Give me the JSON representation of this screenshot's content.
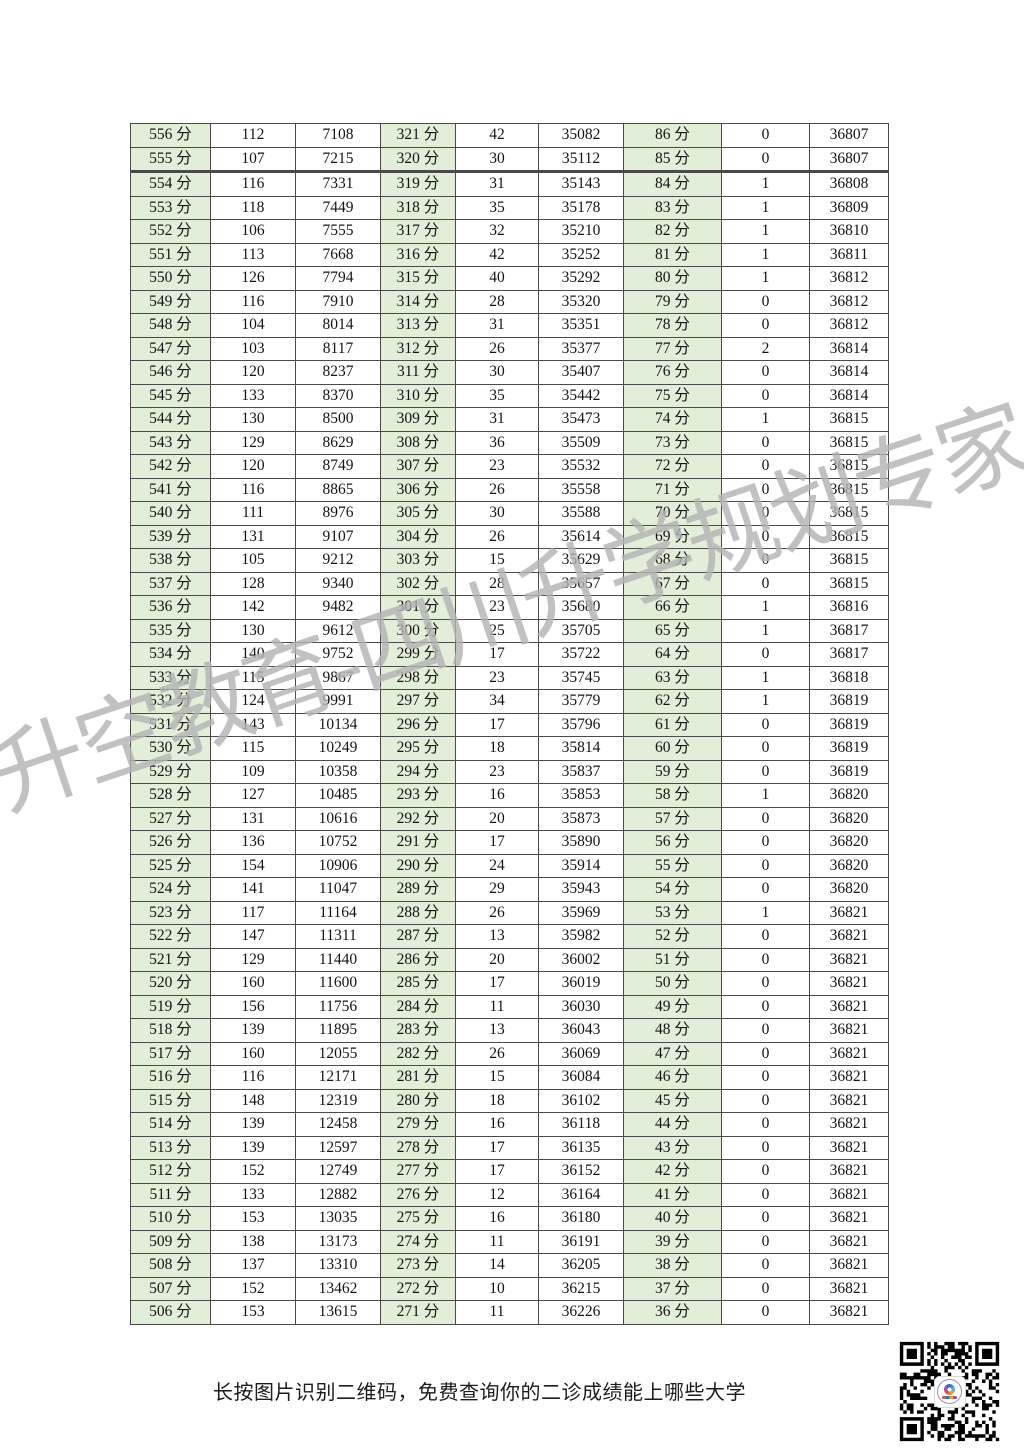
{
  "document": {
    "watermark": "升空教育-四川升学规划专家",
    "footer_caption": "长按图片识别二维码，免费查询你的二诊成绩能上哪些大学",
    "qr_code": {
      "icon": "qr-code",
      "center_logo_icon": "shengkong-education-logo"
    }
  },
  "colors": {
    "page_bg": "#ffffff",
    "score_cell_bg": "#e2eed8",
    "table_border": "#4a4a4a",
    "watermark_gray": "#b4b4b4",
    "text": "#141414"
  },
  "table": {
    "rows": [
      [
        "556 分",
        "112",
        "7108",
        "321 分",
        "42",
        "35082",
        "86 分",
        "0",
        "36807"
      ],
      [
        "555 分",
        "107",
        "7215",
        "320 分",
        "30",
        "35112",
        "85 分",
        "0",
        "36807"
      ],
      [
        "554 分",
        "116",
        "7331",
        "319 分",
        "31",
        "35143",
        "84 分",
        "1",
        "36808"
      ],
      [
        "553 分",
        "118",
        "7449",
        "318 分",
        "35",
        "35178",
        "83 分",
        "1",
        "36809"
      ],
      [
        "552 分",
        "106",
        "7555",
        "317 分",
        "32",
        "35210",
        "82 分",
        "1",
        "36810"
      ],
      [
        "551 分",
        "113",
        "7668",
        "316 分",
        "42",
        "35252",
        "81 分",
        "1",
        "36811"
      ],
      [
        "550 分",
        "126",
        "7794",
        "315 分",
        "40",
        "35292",
        "80 分",
        "1",
        "36812"
      ],
      [
        "549 分",
        "116",
        "7910",
        "314 分",
        "28",
        "35320",
        "79 分",
        "0",
        "36812"
      ],
      [
        "548 分",
        "104",
        "8014",
        "313 分",
        "31",
        "35351",
        "78 分",
        "0",
        "36812"
      ],
      [
        "547 分",
        "103",
        "8117",
        "312 分",
        "26",
        "35377",
        "77 分",
        "2",
        "36814"
      ],
      [
        "546 分",
        "120",
        "8237",
        "311 分",
        "30",
        "35407",
        "76 分",
        "0",
        "36814"
      ],
      [
        "545 分",
        "133",
        "8370",
        "310 分",
        "35",
        "35442",
        "75 分",
        "0",
        "36814"
      ],
      [
        "544 分",
        "130",
        "8500",
        "309 分",
        "31",
        "35473",
        "74 分",
        "1",
        "36815"
      ],
      [
        "543 分",
        "129",
        "8629",
        "308 分",
        "36",
        "35509",
        "73 分",
        "0",
        "36815"
      ],
      [
        "542 分",
        "120",
        "8749",
        "307 分",
        "23",
        "35532",
        "72 分",
        "0",
        "36815"
      ],
      [
        "541 分",
        "116",
        "8865",
        "306 分",
        "26",
        "35558",
        "71 分",
        "0",
        "36815"
      ],
      [
        "540 分",
        "111",
        "8976",
        "305 分",
        "30",
        "35588",
        "70 分",
        "0",
        "36815"
      ],
      [
        "539 分",
        "131",
        "9107",
        "304 分",
        "26",
        "35614",
        "69 分",
        "0",
        "36815"
      ],
      [
        "538 分",
        "105",
        "9212",
        "303 分",
        "15",
        "35629",
        "68 分",
        "0",
        "36815"
      ],
      [
        "537 分",
        "128",
        "9340",
        "302 分",
        "28",
        "35657",
        "67 分",
        "0",
        "36815"
      ],
      [
        "536 分",
        "142",
        "9482",
        "301 分",
        "23",
        "35680",
        "66 分",
        "1",
        "36816"
      ],
      [
        "535 分",
        "130",
        "9612",
        "300 分",
        "25",
        "35705",
        "65 分",
        "1",
        "36817"
      ],
      [
        "534 分",
        "140",
        "9752",
        "299 分",
        "17",
        "35722",
        "64 分",
        "0",
        "36817"
      ],
      [
        "533 分",
        "115",
        "9867",
        "298 分",
        "23",
        "35745",
        "63 分",
        "1",
        "36818"
      ],
      [
        "532 分",
        "124",
        "9991",
        "297 分",
        "34",
        "35779",
        "62 分",
        "1",
        "36819"
      ],
      [
        "531 分",
        "143",
        "10134",
        "296 分",
        "17",
        "35796",
        "61 分",
        "0",
        "36819"
      ],
      [
        "530 分",
        "115",
        "10249",
        "295 分",
        "18",
        "35814",
        "60 分",
        "0",
        "36819"
      ],
      [
        "529 分",
        "109",
        "10358",
        "294 分",
        "23",
        "35837",
        "59 分",
        "0",
        "36819"
      ],
      [
        "528 分",
        "127",
        "10485",
        "293 分",
        "16",
        "35853",
        "58 分",
        "1",
        "36820"
      ],
      [
        "527 分",
        "131",
        "10616",
        "292 分",
        "20",
        "35873",
        "57 分",
        "0",
        "36820"
      ],
      [
        "526 分",
        "136",
        "10752",
        "291 分",
        "17",
        "35890",
        "56 分",
        "0",
        "36820"
      ],
      [
        "525 分",
        "154",
        "10906",
        "290 分",
        "24",
        "35914",
        "55 分",
        "0",
        "36820"
      ],
      [
        "524 分",
        "141",
        "11047",
        "289 分",
        "29",
        "35943",
        "54 分",
        "0",
        "36820"
      ],
      [
        "523 分",
        "117",
        "11164",
        "288 分",
        "26",
        "35969",
        "53 分",
        "1",
        "36821"
      ],
      [
        "522 分",
        "147",
        "11311",
        "287 分",
        "13",
        "35982",
        "52 分",
        "0",
        "36821"
      ],
      [
        "521 分",
        "129",
        "11440",
        "286 分",
        "20",
        "36002",
        "51 分",
        "0",
        "36821"
      ],
      [
        "520 分",
        "160",
        "11600",
        "285 分",
        "17",
        "36019",
        "50 分",
        "0",
        "36821"
      ],
      [
        "519 分",
        "156",
        "11756",
        "284 分",
        "11",
        "36030",
        "49 分",
        "0",
        "36821"
      ],
      [
        "518 分",
        "139",
        "11895",
        "283 分",
        "13",
        "36043",
        "48 分",
        "0",
        "36821"
      ],
      [
        "517 分",
        "160",
        "12055",
        "282 分",
        "26",
        "36069",
        "47 分",
        "0",
        "36821"
      ],
      [
        "516 分",
        "116",
        "12171",
        "281 分",
        "15",
        "36084",
        "46 分",
        "0",
        "36821"
      ],
      [
        "515 分",
        "148",
        "12319",
        "280 分",
        "18",
        "36102",
        "45 分",
        "0",
        "36821"
      ],
      [
        "514 分",
        "139",
        "12458",
        "279 分",
        "16",
        "36118",
        "44 分",
        "0",
        "36821"
      ],
      [
        "513 分",
        "139",
        "12597",
        "278 分",
        "17",
        "36135",
        "43 分",
        "0",
        "36821"
      ],
      [
        "512 分",
        "152",
        "12749",
        "277 分",
        "17",
        "36152",
        "42 分",
        "0",
        "36821"
      ],
      [
        "511 分",
        "133",
        "12882",
        "276 分",
        "12",
        "36164",
        "41 分",
        "0",
        "36821"
      ],
      [
        "510 分",
        "153",
        "13035",
        "275 分",
        "16",
        "36180",
        "40 分",
        "0",
        "36821"
      ],
      [
        "509 分",
        "138",
        "13173",
        "274 分",
        "11",
        "36191",
        "39 分",
        "0",
        "36821"
      ],
      [
        "508 分",
        "137",
        "13310",
        "273 分",
        "14",
        "36205",
        "38 分",
        "0",
        "36821"
      ],
      [
        "507 分",
        "152",
        "13462",
        "272 分",
        "10",
        "36215",
        "37 分",
        "0",
        "36821"
      ],
      [
        "506 分",
        "153",
        "13615",
        "271 分",
        "11",
        "36226",
        "36 分",
        "0",
        "36821"
      ]
    ]
  }
}
